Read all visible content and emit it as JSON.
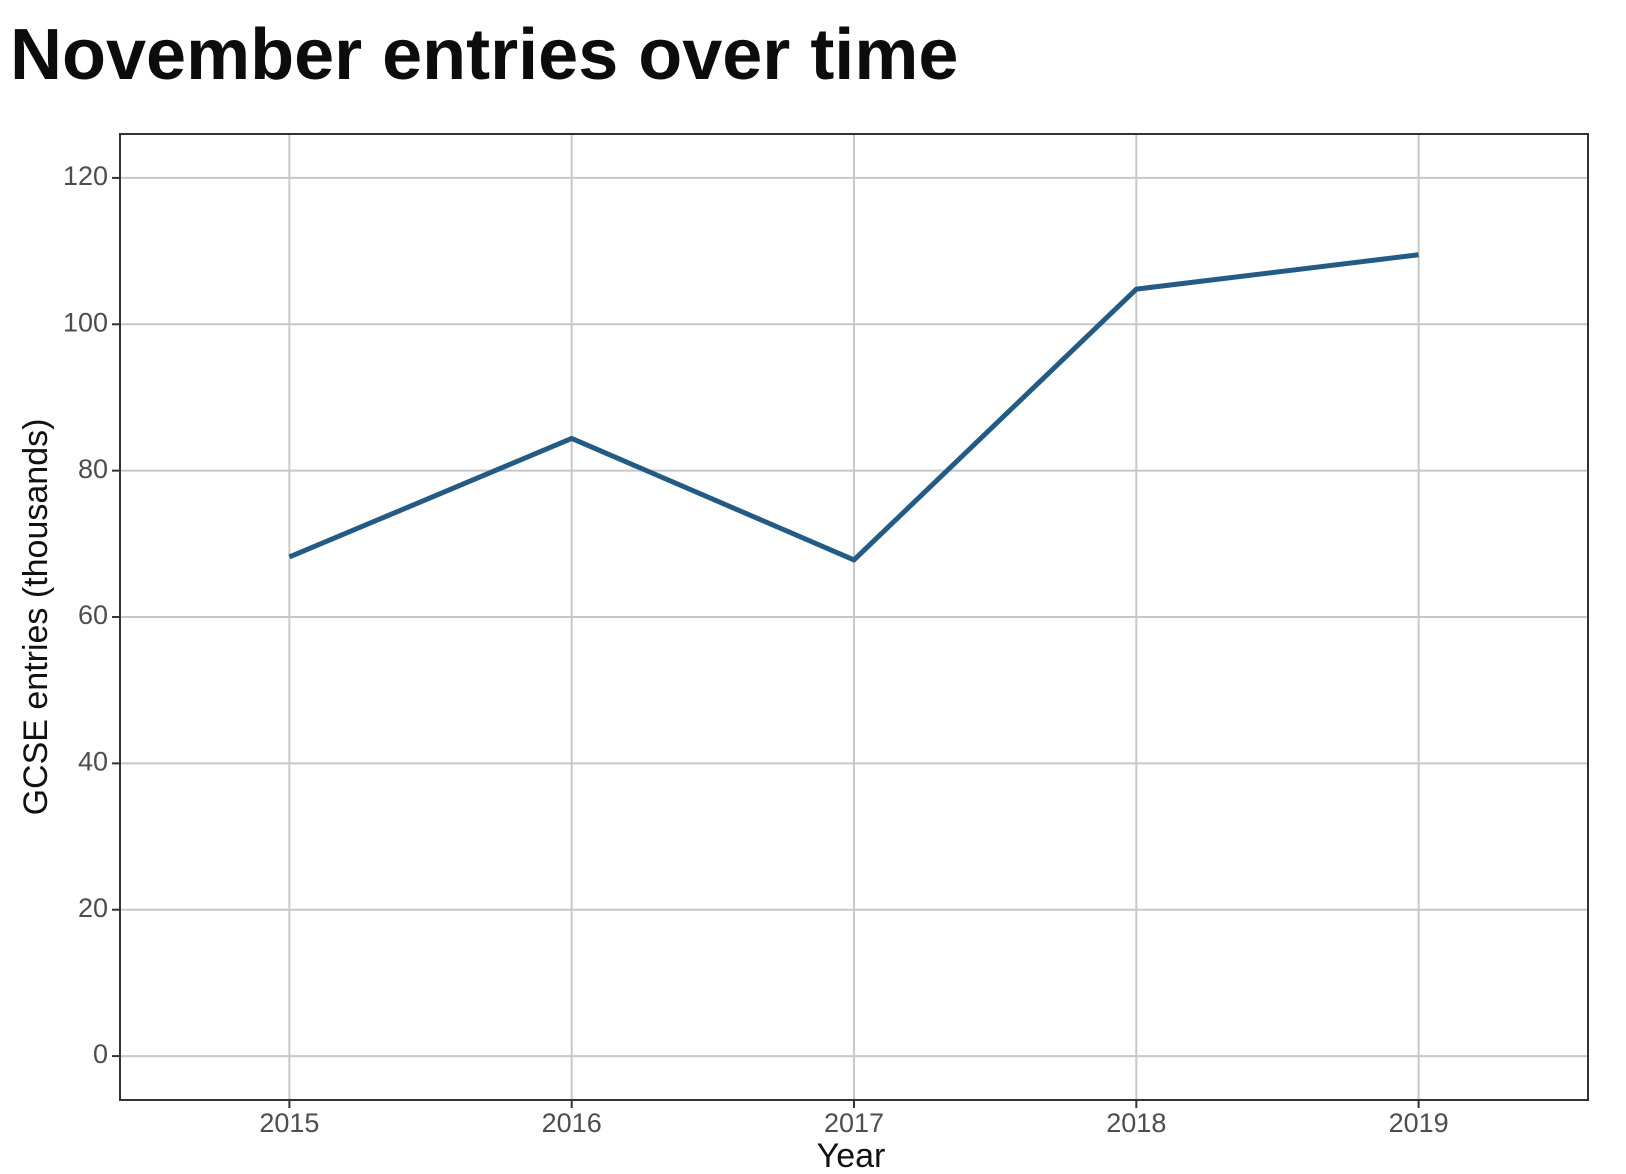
{
  "chart_data": {
    "type": "line",
    "title": "November entries over time",
    "x_label": "Year",
    "y_label": "GCSE entries (thousands)",
    "x": [
      2015,
      2016,
      2017,
      2018,
      2019
    ],
    "values": [
      68.2,
      84.4,
      67.8,
      104.8,
      109.5
    ],
    "color": "#235b85",
    "xlim": [
      2014.4,
      2019.6
    ],
    "xticks": [
      2015,
      2016,
      2017,
      2018,
      2019
    ],
    "ylim": [
      -6,
      126
    ],
    "yticks": [
      0,
      20,
      40,
      60,
      80,
      100,
      120
    ],
    "grid": true
  }
}
